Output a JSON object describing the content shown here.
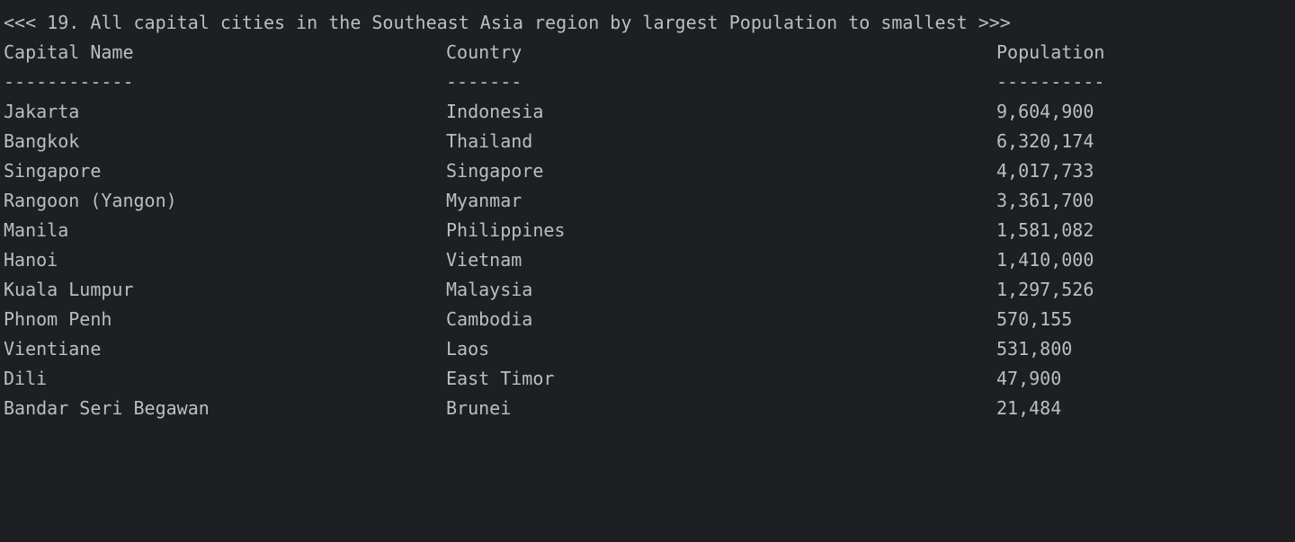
{
  "title": "<<< 19. All capital cities in the Southeast Asia region by largest Population to smallest >>>",
  "headers": {
    "capital": "Capital Name",
    "country": "Country",
    "population": "Population"
  },
  "separators": {
    "capital": "------------",
    "country": "-------",
    "population": "----------"
  },
  "rows": [
    {
      "capital": "Jakarta",
      "country": "Indonesia",
      "population": "9,604,900"
    },
    {
      "capital": "Bangkok",
      "country": "Thailand",
      "population": "6,320,174"
    },
    {
      "capital": "Singapore",
      "country": "Singapore",
      "population": "4,017,733"
    },
    {
      "capital": "Rangoon (Yangon)",
      "country": "Myanmar",
      "population": "3,361,700"
    },
    {
      "capital": "Manila",
      "country": "Philippines",
      "population": "1,581,082"
    },
    {
      "capital": "Hanoi",
      "country": "Vietnam",
      "population": "1,410,000"
    },
    {
      "capital": "Kuala Lumpur",
      "country": "Malaysia",
      "population": "1,297,526"
    },
    {
      "capital": "Phnom Penh",
      "country": "Cambodia",
      "population": "570,155"
    },
    {
      "capital": "Vientiane",
      "country": "Laos",
      "population": "531,800"
    },
    {
      "capital": "Dili",
      "country": "East Timor",
      "population": "47,900"
    },
    {
      "capital": "Bandar Seri Begawan",
      "country": "Brunei",
      "population": "21,484"
    }
  ]
}
